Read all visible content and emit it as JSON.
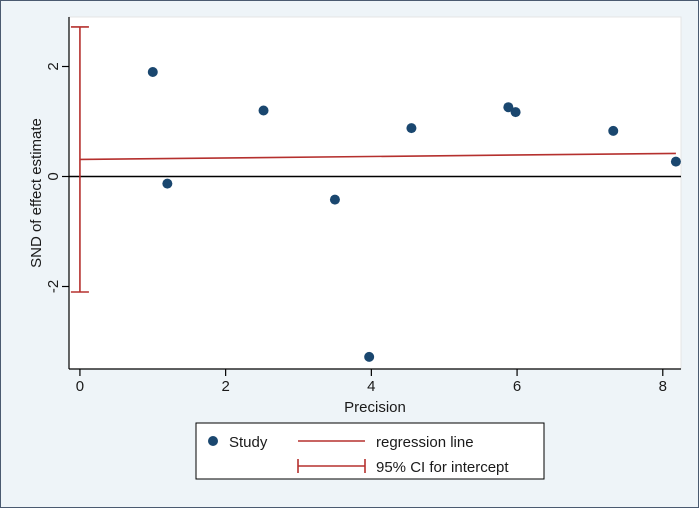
{
  "chart_data": {
    "type": "scatter",
    "title": "",
    "xlabel": "Precision",
    "ylabel": "SND of effect estimate",
    "xlim": [
      -0.15,
      8.25
    ],
    "ylim": [
      -3.5,
      2.9
    ],
    "x_ticks": [
      0,
      2,
      4,
      6,
      8
    ],
    "y_ticks": [
      -2,
      0,
      2
    ],
    "x_tick_labels": [
      "0",
      "2",
      "4",
      "6",
      "8"
    ],
    "y_tick_labels": [
      "-2",
      "0",
      "2"
    ],
    "reference_line_y": 0,
    "series": [
      {
        "name": "Study",
        "kind": "scatter",
        "points": [
          {
            "x": 1.0,
            "y": 1.9
          },
          {
            "x": 1.2,
            "y": -0.13
          },
          {
            "x": 2.52,
            "y": 1.2
          },
          {
            "x": 3.5,
            "y": -0.42
          },
          {
            "x": 3.97,
            "y": -3.28
          },
          {
            "x": 4.55,
            "y": 0.88
          },
          {
            "x": 5.88,
            "y": 1.26
          },
          {
            "x": 5.98,
            "y": 1.17
          },
          {
            "x": 7.32,
            "y": 0.83
          },
          {
            "x": 8.18,
            "y": 0.27
          }
        ]
      },
      {
        "name": "regression line",
        "kind": "line",
        "x": [
          0,
          8.18
        ],
        "y": [
          0.31,
          0.42
        ]
      },
      {
        "name": "95% CI for intercept",
        "kind": "errorbar",
        "x": 0,
        "lower": -2.1,
        "upper": 2.72
      }
    ],
    "legend": {
      "position": "bottom",
      "entries": [
        "Study",
        "regression line",
        "95% CI for intercept"
      ]
    },
    "colors": {
      "marker": "#1a476f",
      "regression": "#b5302e",
      "ci": "#b5302e",
      "reference": "#000000",
      "plot_bg": "#ffffff",
      "outer_bg": "#eef4f8",
      "axis": "#000000"
    }
  }
}
